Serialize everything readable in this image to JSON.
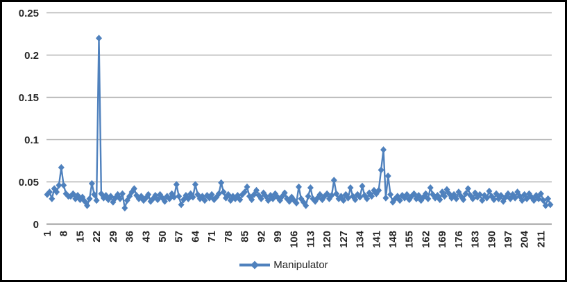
{
  "window": {
    "background": "#ffffff",
    "border_color": "#000000"
  },
  "legend": {
    "label": "Manipulator"
  },
  "chart_data": {
    "type": "line",
    "title": "",
    "xlabel": "",
    "ylabel": "",
    "ylim": [
      0,
      0.25
    ],
    "y_tick_labels": [
      "0",
      "0.05",
      "0.1",
      "0.15",
      "0.2",
      "0.25"
    ],
    "x_tick_labels": [
      "1",
      "8",
      "15",
      "22",
      "29",
      "36",
      "43",
      "50",
      "57",
      "64",
      "71",
      "78",
      "85",
      "92",
      "99",
      "106",
      "113",
      "120",
      "127",
      "134",
      "141",
      "148",
      "155",
      "162",
      "169",
      "176",
      "183",
      "190",
      "197",
      "204",
      "211"
    ],
    "x_tick_every": 7,
    "grid": true,
    "legend_position": "bottom",
    "colors": {
      "line": "#4F81BD",
      "gridline": "#B3B3B3",
      "axis": "#9B9B9B",
      "label": "#262626"
    },
    "series": [
      {
        "name": "Manipulator",
        "marker": "diamond",
        "color": "#4F81BD",
        "values": [
          0.035,
          0.038,
          0.03,
          0.042,
          0.038,
          0.046,
          0.067,
          0.046,
          0.036,
          0.033,
          0.033,
          0.036,
          0.03,
          0.034,
          0.029,
          0.032,
          0.027,
          0.022,
          0.03,
          0.048,
          0.035,
          0.028,
          0.22,
          0.036,
          0.031,
          0.034,
          0.029,
          0.033,
          0.026,
          0.031,
          0.035,
          0.03,
          0.036,
          0.019,
          0.028,
          0.033,
          0.038,
          0.042,
          0.034,
          0.03,
          0.033,
          0.028,
          0.031,
          0.035,
          0.027,
          0.03,
          0.034,
          0.029,
          0.035,
          0.031,
          0.027,
          0.033,
          0.03,
          0.036,
          0.032,
          0.047,
          0.033,
          0.023,
          0.029,
          0.034,
          0.03,
          0.036,
          0.032,
          0.047,
          0.035,
          0.03,
          0.033,
          0.028,
          0.034,
          0.031,
          0.035,
          0.029,
          0.032,
          0.036,
          0.049,
          0.038,
          0.031,
          0.035,
          0.028,
          0.033,
          0.03,
          0.034,
          0.029,
          0.035,
          0.038,
          0.044,
          0.033,
          0.029,
          0.035,
          0.04,
          0.034,
          0.03,
          0.037,
          0.033,
          0.028,
          0.034,
          0.03,
          0.036,
          0.032,
          0.028,
          0.033,
          0.037,
          0.03,
          0.027,
          0.032,
          0.028,
          0.025,
          0.044,
          0.03,
          0.026,
          0.022,
          0.033,
          0.043,
          0.03,
          0.027,
          0.031,
          0.035,
          0.029,
          0.033,
          0.036,
          0.03,
          0.034,
          0.052,
          0.036,
          0.03,
          0.033,
          0.028,
          0.035,
          0.031,
          0.043,
          0.033,
          0.029,
          0.035,
          0.032,
          0.045,
          0.034,
          0.03,
          0.037,
          0.033,
          0.04,
          0.036,
          0.04,
          0.064,
          0.088,
          0.031,
          0.057,
          0.035,
          0.026,
          0.03,
          0.033,
          0.028,
          0.034,
          0.031,
          0.035,
          0.029,
          0.033,
          0.036,
          0.03,
          0.034,
          0.028,
          0.032,
          0.036,
          0.03,
          0.043,
          0.035,
          0.031,
          0.034,
          0.029,
          0.038,
          0.033,
          0.041,
          0.036,
          0.031,
          0.035,
          0.03,
          0.038,
          0.033,
          0.029,
          0.036,
          0.042,
          0.034,
          0.03,
          0.037,
          0.032,
          0.035,
          0.028,
          0.034,
          0.031,
          0.039,
          0.033,
          0.029,
          0.036,
          0.03,
          0.034,
          0.027,
          0.032,
          0.036,
          0.03,
          0.035,
          0.031,
          0.038,
          0.033,
          0.028,
          0.035,
          0.03,
          0.036,
          0.032,
          0.028,
          0.034,
          0.03,
          0.036,
          0.028,
          0.022,
          0.03,
          0.023
        ]
      }
    ]
  }
}
